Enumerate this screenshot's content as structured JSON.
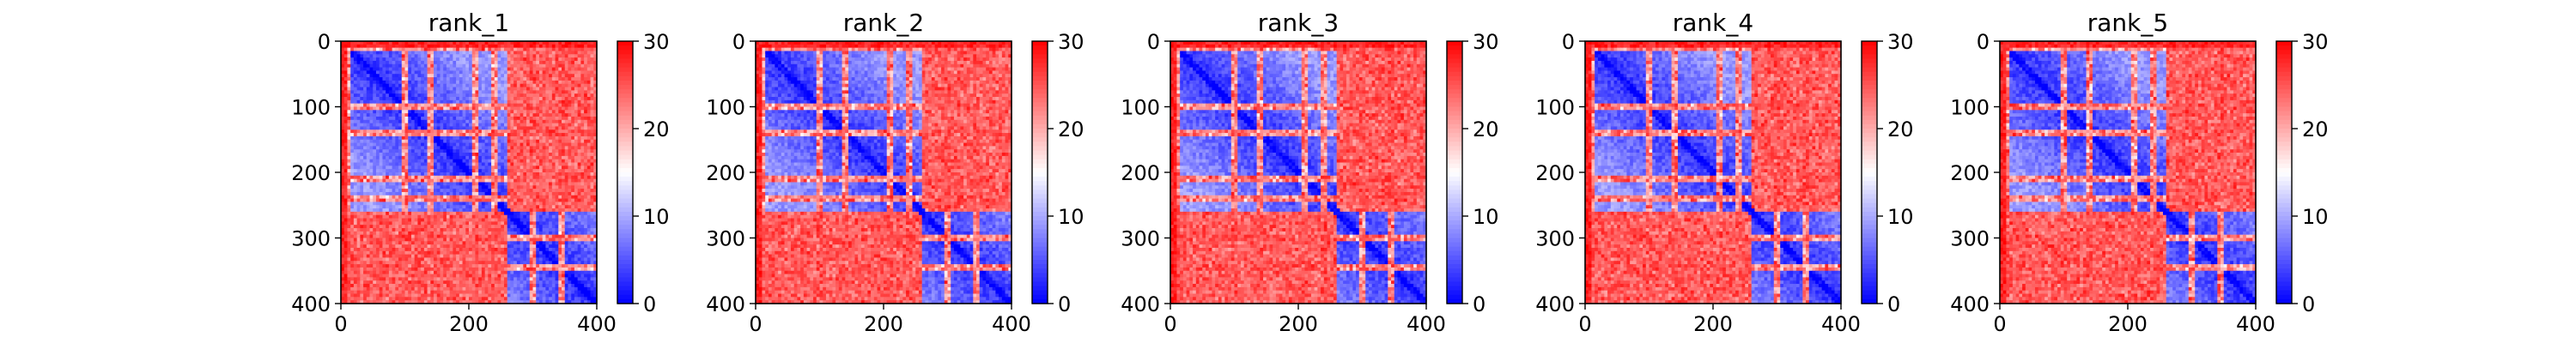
{
  "figure": {
    "background": "#ffffff"
  },
  "chart_data": [
    {
      "type": "heatmap",
      "title": "rank_1",
      "xlabel": "",
      "ylabel": "",
      "matrix_size": 400,
      "xlim": [
        0,
        400
      ],
      "ylim": [
        400,
        0
      ],
      "xticks": [
        0,
        200,
        400
      ],
      "yticks": [
        0,
        100,
        200,
        300,
        400
      ],
      "colorbar": {
        "ticks": [
          0,
          10,
          20,
          30
        ],
        "vmin": 0,
        "vmax": 30,
        "colormap": "bwr"
      },
      "domain_boundaries": [
        260
      ],
      "stripes": [
        10,
        100,
        140,
        210,
        240,
        300,
        345
      ],
      "grid": false
    },
    {
      "type": "heatmap",
      "title": "rank_2",
      "xlabel": "",
      "ylabel": "",
      "matrix_size": 400,
      "xlim": [
        0,
        400
      ],
      "ylim": [
        400,
        0
      ],
      "xticks": [
        0,
        200,
        400
      ],
      "yticks": [
        0,
        100,
        200,
        300,
        400
      ],
      "colorbar": {
        "ticks": [
          0,
          10,
          20,
          30
        ],
        "vmin": 0,
        "vmax": 30,
        "colormap": "bwr"
      },
      "domain_boundaries": [
        260
      ],
      "stripes": [
        10,
        100,
        140,
        210,
        240,
        300,
        345
      ],
      "grid": false
    },
    {
      "type": "heatmap",
      "title": "rank_3",
      "xlabel": "",
      "ylabel": "",
      "matrix_size": 400,
      "xlim": [
        0,
        400
      ],
      "ylim": [
        400,
        0
      ],
      "xticks": [
        0,
        200,
        400
      ],
      "yticks": [
        0,
        100,
        200,
        300,
        400
      ],
      "colorbar": {
        "ticks": [
          0,
          10,
          20,
          30
        ],
        "vmin": 0,
        "vmax": 30,
        "colormap": "bwr"
      },
      "domain_boundaries": [
        260
      ],
      "stripes": [
        10,
        100,
        140,
        210,
        240,
        300,
        345
      ],
      "grid": false
    },
    {
      "type": "heatmap",
      "title": "rank_4",
      "xlabel": "",
      "ylabel": "",
      "matrix_size": 400,
      "xlim": [
        0,
        400
      ],
      "ylim": [
        400,
        0
      ],
      "xticks": [
        0,
        200,
        400
      ],
      "yticks": [
        0,
        100,
        200,
        300,
        400
      ],
      "colorbar": {
        "ticks": [
          0,
          10,
          20,
          30
        ],
        "vmin": 0,
        "vmax": 30,
        "colormap": "bwr"
      },
      "domain_boundaries": [
        260
      ],
      "stripes": [
        10,
        100,
        140,
        210,
        240,
        300,
        345
      ],
      "grid": false
    },
    {
      "type": "heatmap",
      "title": "rank_5",
      "xlabel": "",
      "ylabel": "",
      "matrix_size": 400,
      "xlim": [
        0,
        400
      ],
      "ylim": [
        400,
        0
      ],
      "xticks": [
        0,
        200,
        400
      ],
      "yticks": [
        0,
        100,
        200,
        300,
        400
      ],
      "colorbar": {
        "ticks": [
          0,
          10,
          20,
          30
        ],
        "vmin": 0,
        "vmax": 30,
        "colormap": "bwr"
      },
      "domain_boundaries": [
        260
      ],
      "stripes": [
        10,
        100,
        140,
        210,
        240,
        300,
        345
      ],
      "grid": false
    }
  ]
}
